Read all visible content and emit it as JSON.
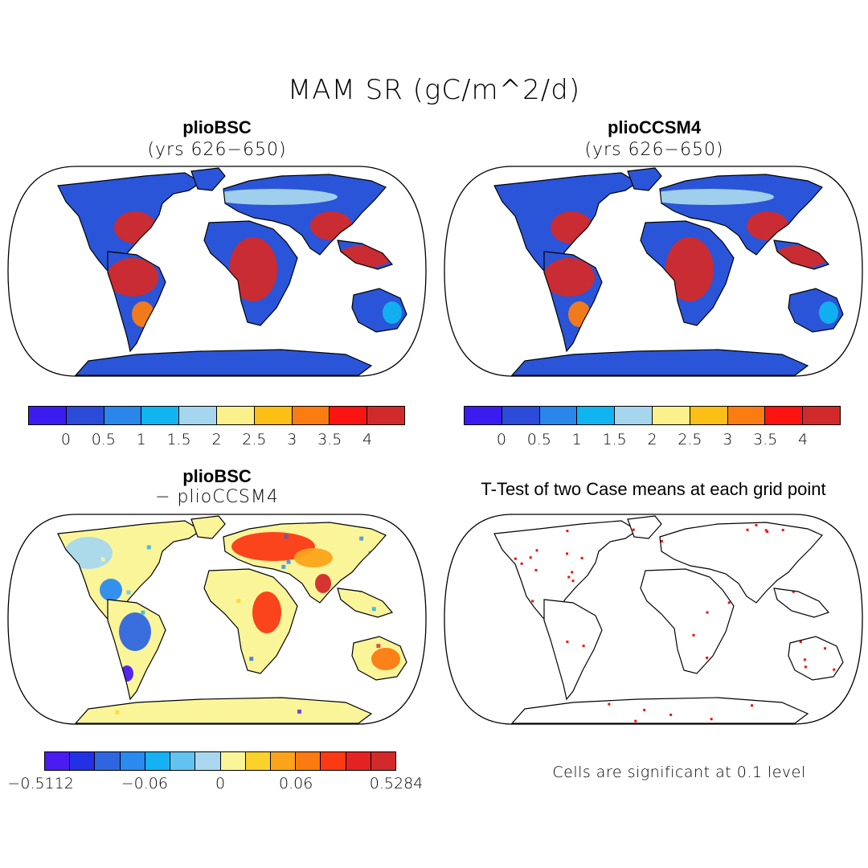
{
  "figure": {
    "title": "MAM SR (gC/m^2/d)"
  },
  "panels": {
    "p1": {
      "title": "plioBSC",
      "subtitle": "(yrs 626−650)"
    },
    "p2": {
      "title": "plioCCSM4",
      "subtitle": "(yrs 626−650)"
    },
    "p3": {
      "title": "plioBSC",
      "subtitle": "− plioCCSM4"
    },
    "p4": {
      "title": "T-Test of two Case means at each grid point",
      "note": "Cells are significant at 0.1 level"
    }
  },
  "colorbars": {
    "absolute": {
      "colors": [
        "#3b1cf0",
        "#2b4bd8",
        "#2a86eb",
        "#10b4f0",
        "#a6d6ee",
        "#fbf18c",
        "#fbbf16",
        "#fb7d12",
        "#fb1410",
        "#d22a2a"
      ],
      "labels": [
        "0",
        "0.5",
        "1",
        "1.5",
        "2",
        "2.5",
        "3",
        "3.5",
        "4"
      ]
    },
    "difference": {
      "colors": [
        "#4a1cf0",
        "#2230e6",
        "#2f66e0",
        "#2a8af0",
        "#16b1f2",
        "#62c3f0",
        "#a9d8ee",
        "#fbf59a",
        "#fbd22a",
        "#fba41a",
        "#fb7a12",
        "#fb3a14",
        "#e52222",
        "#d22a2a"
      ],
      "labels": [
        "−0.5112",
        "−0.06",
        "0",
        "0.06",
        "0.5284"
      ]
    },
    "significance_color": "#f01010"
  },
  "colors": {
    "land_default": "#2a55d8",
    "land_diff": "#fbf59a"
  }
}
